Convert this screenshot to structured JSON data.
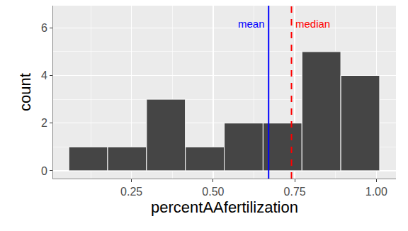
{
  "chart_data": {
    "type": "histogram",
    "x_label": "percentAAfertilization",
    "y_label": "count",
    "bins": [
      0.058,
      0.177,
      0.296,
      0.415,
      0.534,
      0.653,
      0.772,
      0.891,
      1.01
    ],
    "counts": [
      1,
      1,
      3,
      1,
      2,
      2,
      5,
      4
    ],
    "color": "#454545",
    "xlim": [
      0.01,
      1.06
    ],
    "ylim": [
      -0.33,
      6.93
    ],
    "xticks": [
      0.25,
      {
        "value": 0.5,
        "label": "0.50"
      },
      0.75,
      {
        "value": 1,
        "label": "1.00"
      }
    ],
    "yticks": [
      0,
      2,
      4,
      6
    ],
    "grid": true,
    "lines": [
      {
        "name": "mean",
        "value": 0.67,
        "color": "blue",
        "line_style": "solid"
      },
      {
        "name": "median",
        "value": 0.74,
        "color": "red",
        "line_style": "dashed"
      }
    ]
  }
}
